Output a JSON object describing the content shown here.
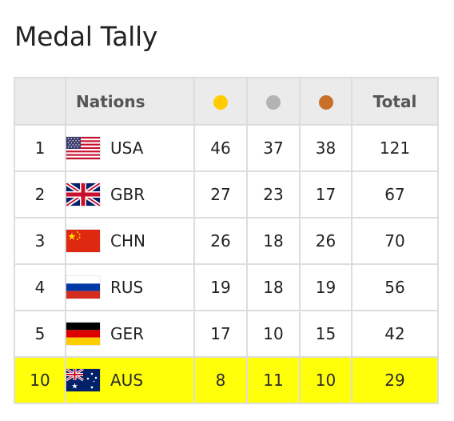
{
  "title": "Medal Tally",
  "header": {
    "nations": "Nations",
    "total": "Total",
    "gold_color": "#ffcc00",
    "silver_color": "#b3b3b3",
    "bronze_color": "#c8702a"
  },
  "highlight_color": "#ffff0a",
  "rows": [
    {
      "rank": "1",
      "code": "USA",
      "gold": "46",
      "silver": "37",
      "bronze": "38",
      "total": "121",
      "flag": "usa-flag-icon"
    },
    {
      "rank": "2",
      "code": "GBR",
      "gold": "27",
      "silver": "23",
      "bronze": "17",
      "total": "67",
      "flag": "gbr-flag-icon"
    },
    {
      "rank": "3",
      "code": "CHN",
      "gold": "26",
      "silver": "18",
      "bronze": "26",
      "total": "70",
      "flag": "chn-flag-icon"
    },
    {
      "rank": "4",
      "code": "RUS",
      "gold": "19",
      "silver": "18",
      "bronze": "19",
      "total": "56",
      "flag": "rus-flag-icon"
    },
    {
      "rank": "5",
      "code": "GER",
      "gold": "17",
      "silver": "10",
      "bronze": "15",
      "total": "42",
      "flag": "ger-flag-icon"
    },
    {
      "rank": "10",
      "code": "AUS",
      "gold": "8",
      "silver": "11",
      "bronze": "10",
      "total": "29",
      "flag": "aus-flag-icon"
    }
  ]
}
